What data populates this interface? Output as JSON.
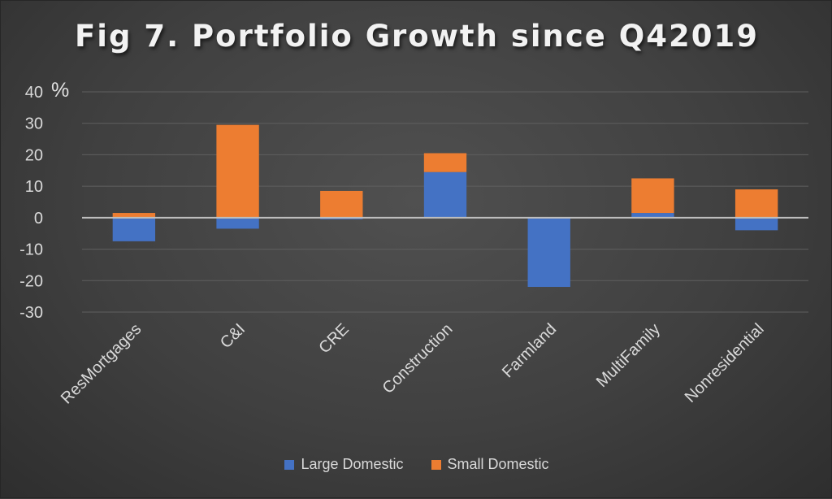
{
  "chart_data": {
    "type": "bar",
    "stacked": true,
    "title": "Fig 7. Portfolio Growth since Q42019",
    "ylabel": "%",
    "xlabel": "",
    "ylim": [
      -30,
      40
    ],
    "yticks": [
      40,
      30,
      20,
      10,
      0,
      -10,
      -20,
      -30
    ],
    "grid": true,
    "legend_position": "bottom",
    "categories": [
      "ResMortgages",
      "C&I",
      "CRE",
      "Construction",
      "Farmland",
      "MultiFamily",
      "Nonresidential"
    ],
    "series": [
      {
        "name": "Large Domestic",
        "color": "#4472c4",
        "values": [
          -7.5,
          -3.5,
          -0.5,
          14.5,
          -22.0,
          1.5,
          -4.0
        ]
      },
      {
        "name": "Small Domestic",
        "color": "#ed7d31",
        "values": [
          1.5,
          29.5,
          8.5,
          6.0,
          0.0,
          11.0,
          9.0
        ]
      }
    ]
  }
}
